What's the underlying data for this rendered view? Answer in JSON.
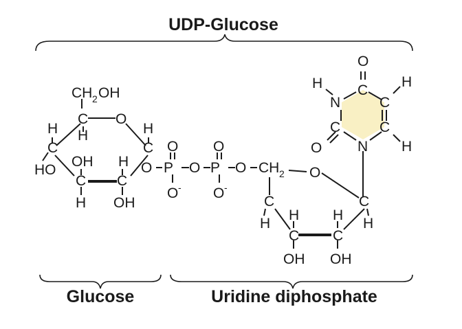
{
  "title": "UDP-Glucose",
  "groups": {
    "left": "Glucose",
    "right": "Uridine diphosphate"
  },
  "atoms": {
    "ch2oh_ch": "CH",
    "ch2oh_sub": "2",
    "ch2oh_oh": "OH",
    "ch2_ch": "CH",
    "ch2_sub": "2",
    "C": "C",
    "H": "H",
    "O": "O",
    "N": "N",
    "P": "P",
    "OH": "OH",
    "HO": "HO",
    "o_minus": "O",
    "minus": "-"
  },
  "colors": {
    "uracil_ring_fill": "#f9f0c4",
    "ink": "#1a1a1a"
  }
}
